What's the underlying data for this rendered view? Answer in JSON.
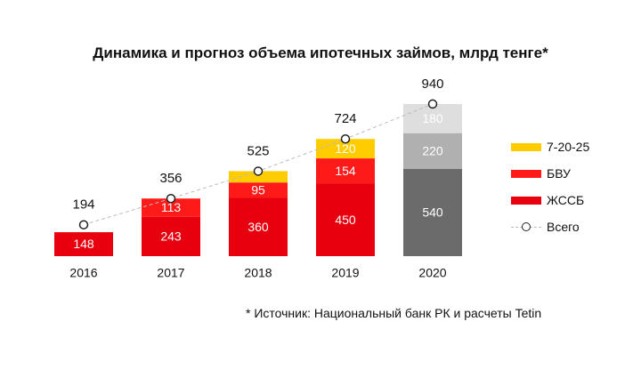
{
  "chart_data": {
    "type": "bar",
    "stacked": true,
    "title": "Динамика и прогноз объема ипотечных займов, млрд тенге*",
    "categories": [
      "2016",
      "2017",
      "2018",
      "2019",
      "2020"
    ],
    "series": [
      {
        "name": "ЖССБ",
        "values": [
          148,
          243,
          360,
          450,
          540
        ],
        "colors": [
          "#e8000f",
          "#e8000f",
          "#e8000f",
          "#e8000f",
          "#6b6b6b"
        ]
      },
      {
        "name": "БВУ",
        "values": [
          null,
          113,
          95,
          154,
          220
        ],
        "colors": [
          "#ff1a1a",
          "#ff1a1a",
          "#ff1a1a",
          "#ff1a1a",
          "#b0b0b0"
        ]
      },
      {
        "name": "7-20-25",
        "values": [
          null,
          null,
          70,
          120,
          180
        ],
        "labels": [
          "",
          "",
          "",
          "120",
          "180"
        ],
        "colors": [
          "#ffcc00",
          "#ffcc00",
          "#ffcc00",
          "#ffcc00",
          "#dedede"
        ]
      }
    ],
    "totals": {
      "name": "Всего",
      "values": [
        194,
        356,
        525,
        724,
        940
      ]
    },
    "legend_position": "right",
    "grid": false
  },
  "source_note": "* Источник: Национальный банк РК и расчеты Tetin",
  "legend": [
    {
      "label": "7-20-25",
      "color": "#ffcc00",
      "kind": "swatch"
    },
    {
      "label": "БВУ",
      "color": "#ff1a1a",
      "kind": "swatch"
    },
    {
      "label": "ЖССБ",
      "color": "#e8000f",
      "kind": "swatch"
    },
    {
      "label": "Всего",
      "kind": "line-marker"
    }
  ]
}
